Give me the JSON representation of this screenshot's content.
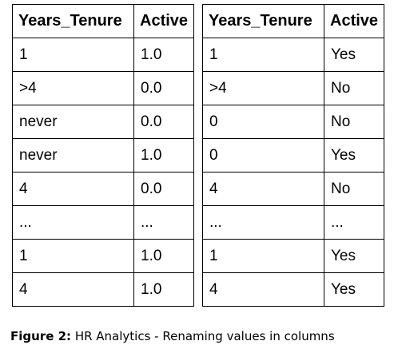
{
  "left_table": {
    "headers": [
      "Years_Tenure",
      "Active"
    ],
    "rows": [
      [
        "1",
        "1.0"
      ],
      [
        ">4",
        "0.0"
      ],
      [
        "never",
        "0.0"
      ],
      [
        "never",
        "1.0"
      ],
      [
        "4",
        "0.0"
      ],
      [
        "...",
        "..."
      ],
      [
        "1",
        "1.0"
      ],
      [
        "4",
        "1.0"
      ]
    ]
  },
  "right_table": {
    "headers": [
      "Years_Tenure",
      "Active"
    ],
    "rows": [
      [
        "1",
        "Yes"
      ],
      [
        ">4",
        "No"
      ],
      [
        "0",
        "No"
      ],
      [
        "0",
        "Yes"
      ],
      [
        "4",
        "No"
      ],
      [
        "...",
        "..."
      ],
      [
        "1",
        "Yes"
      ],
      [
        "4",
        "Yes"
      ]
    ]
  },
  "caption": {
    "label": "Figure 2:",
    "text": " HR Analytics - Renaming values in columns"
  }
}
